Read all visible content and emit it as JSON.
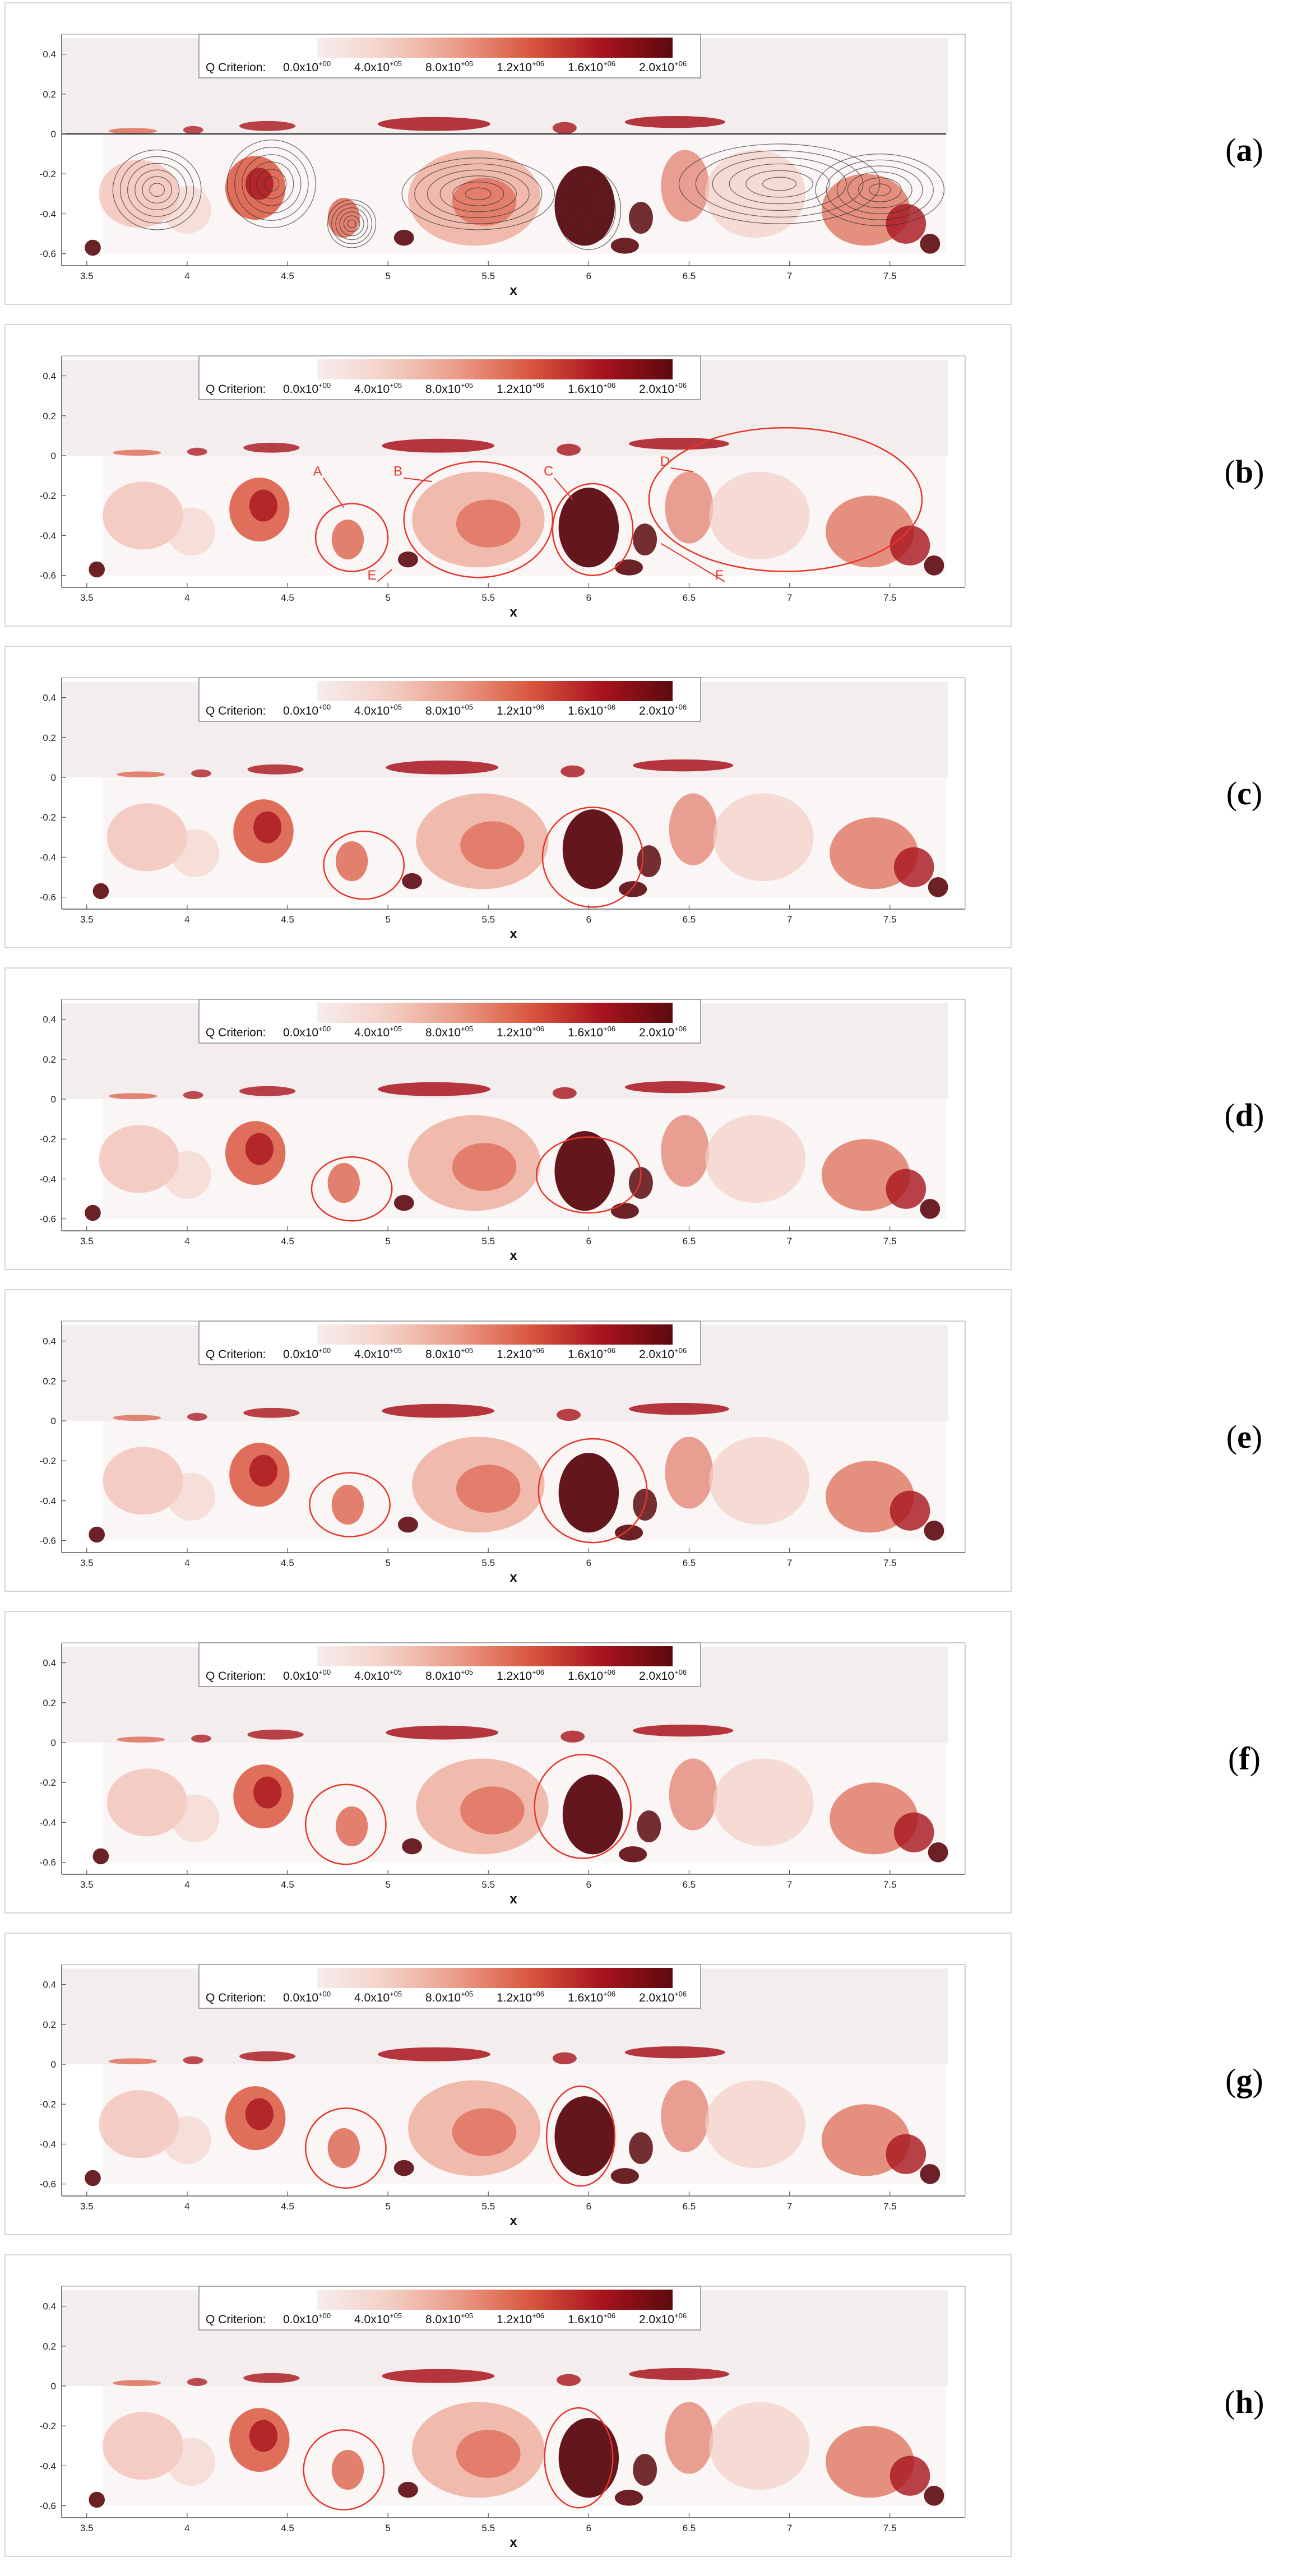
{
  "colorbar": {
    "title": "Q Criterion:",
    "ticks": [
      {
        "m": "0.0x10",
        "e": "+00"
      },
      {
        "m": "4.0x10",
        "e": "+05"
      },
      {
        "m": "8.0x10",
        "e": "+05"
      },
      {
        "m": "1.2x10",
        "e": "+06"
      },
      {
        "m": "1.6x10",
        "e": "+06"
      },
      {
        "m": "2.0x10",
        "e": "+06"
      }
    ],
    "colors": [
      "#f7eeee",
      "#f3cfc6",
      "#ea9a86",
      "#d9573f",
      "#a8141d",
      "#5b0a0f"
    ]
  },
  "axes": {
    "xlabel": "x",
    "xticks": [
      "3.5",
      "4",
      "4.5",
      "5",
      "5.5",
      "6",
      "6.5",
      "7",
      "7.5"
    ],
    "yticks": [
      "0.4",
      "0.2",
      "0",
      "-0.2",
      "-0.4",
      "-0.6"
    ]
  },
  "panels": [
    {
      "label": "a",
      "open": "(",
      "close": ")",
      "streamlines": true,
      "circles": [],
      "annotations": []
    },
    {
      "label": "b",
      "open": "(",
      "close": ")",
      "streamlines": false,
      "circles": [
        {
          "x": 4.82,
          "y": -0.41,
          "rx": 0.18,
          "ry": 0.17
        },
        {
          "x": 5.45,
          "y": -0.32,
          "rx": 0.37,
          "ry": 0.29
        },
        {
          "x": 6.02,
          "y": -0.37,
          "rx": 0.2,
          "ry": 0.23
        },
        {
          "x": 6.98,
          "y": -0.22,
          "rx": 0.68,
          "ry": 0.36
        }
      ],
      "annotations": [
        "A",
        "B",
        "C",
        "D",
        "E",
        "F"
      ]
    },
    {
      "label": "c",
      "open": "(",
      "close": ")",
      "streamlines": false,
      "circles": [
        {
          "x": 4.88,
          "y": -0.44,
          "rx": 0.2,
          "ry": 0.17
        },
        {
          "x": 6.02,
          "y": -0.4,
          "rx": 0.25,
          "ry": 0.25
        }
      ],
      "annotations": []
    },
    {
      "label": "d",
      "open": "(",
      "close": ")",
      "streamlines": false,
      "circles": [
        {
          "x": 4.82,
          "y": -0.45,
          "rx": 0.2,
          "ry": 0.16
        },
        {
          "x": 6.0,
          "y": -0.38,
          "rx": 0.26,
          "ry": 0.19
        }
      ],
      "annotations": []
    },
    {
      "label": "e",
      "open": "(",
      "close": ")",
      "streamlines": false,
      "circles": [
        {
          "x": 4.81,
          "y": -0.42,
          "rx": 0.2,
          "ry": 0.16
        },
        {
          "x": 6.02,
          "y": -0.35,
          "rx": 0.27,
          "ry": 0.26
        }
      ],
      "annotations": []
    },
    {
      "label": "f",
      "open": "(",
      "close": ")",
      "streamlines": false,
      "circles": [
        {
          "x": 4.79,
          "y": -0.41,
          "rx": 0.2,
          "ry": 0.2
        },
        {
          "x": 5.97,
          "y": -0.32,
          "rx": 0.24,
          "ry": 0.26
        }
      ],
      "annotations": []
    },
    {
      "label": "g",
      "open": "(",
      "close": ")",
      "streamlines": false,
      "circles": [
        {
          "x": 4.79,
          "y": -0.42,
          "rx": 0.2,
          "ry": 0.2
        },
        {
          "x": 5.96,
          "y": -0.36,
          "rx": 0.17,
          "ry": 0.25
        }
      ],
      "annotations": []
    },
    {
      "label": "h",
      "open": "(",
      "close": ")",
      "streamlines": false,
      "circles": [
        {
          "x": 4.78,
          "y": -0.42,
          "rx": 0.2,
          "ry": 0.2
        },
        {
          "x": 5.95,
          "y": -0.36,
          "rx": 0.17,
          "ry": 0.25
        }
      ],
      "annotations": []
    }
  ]
}
